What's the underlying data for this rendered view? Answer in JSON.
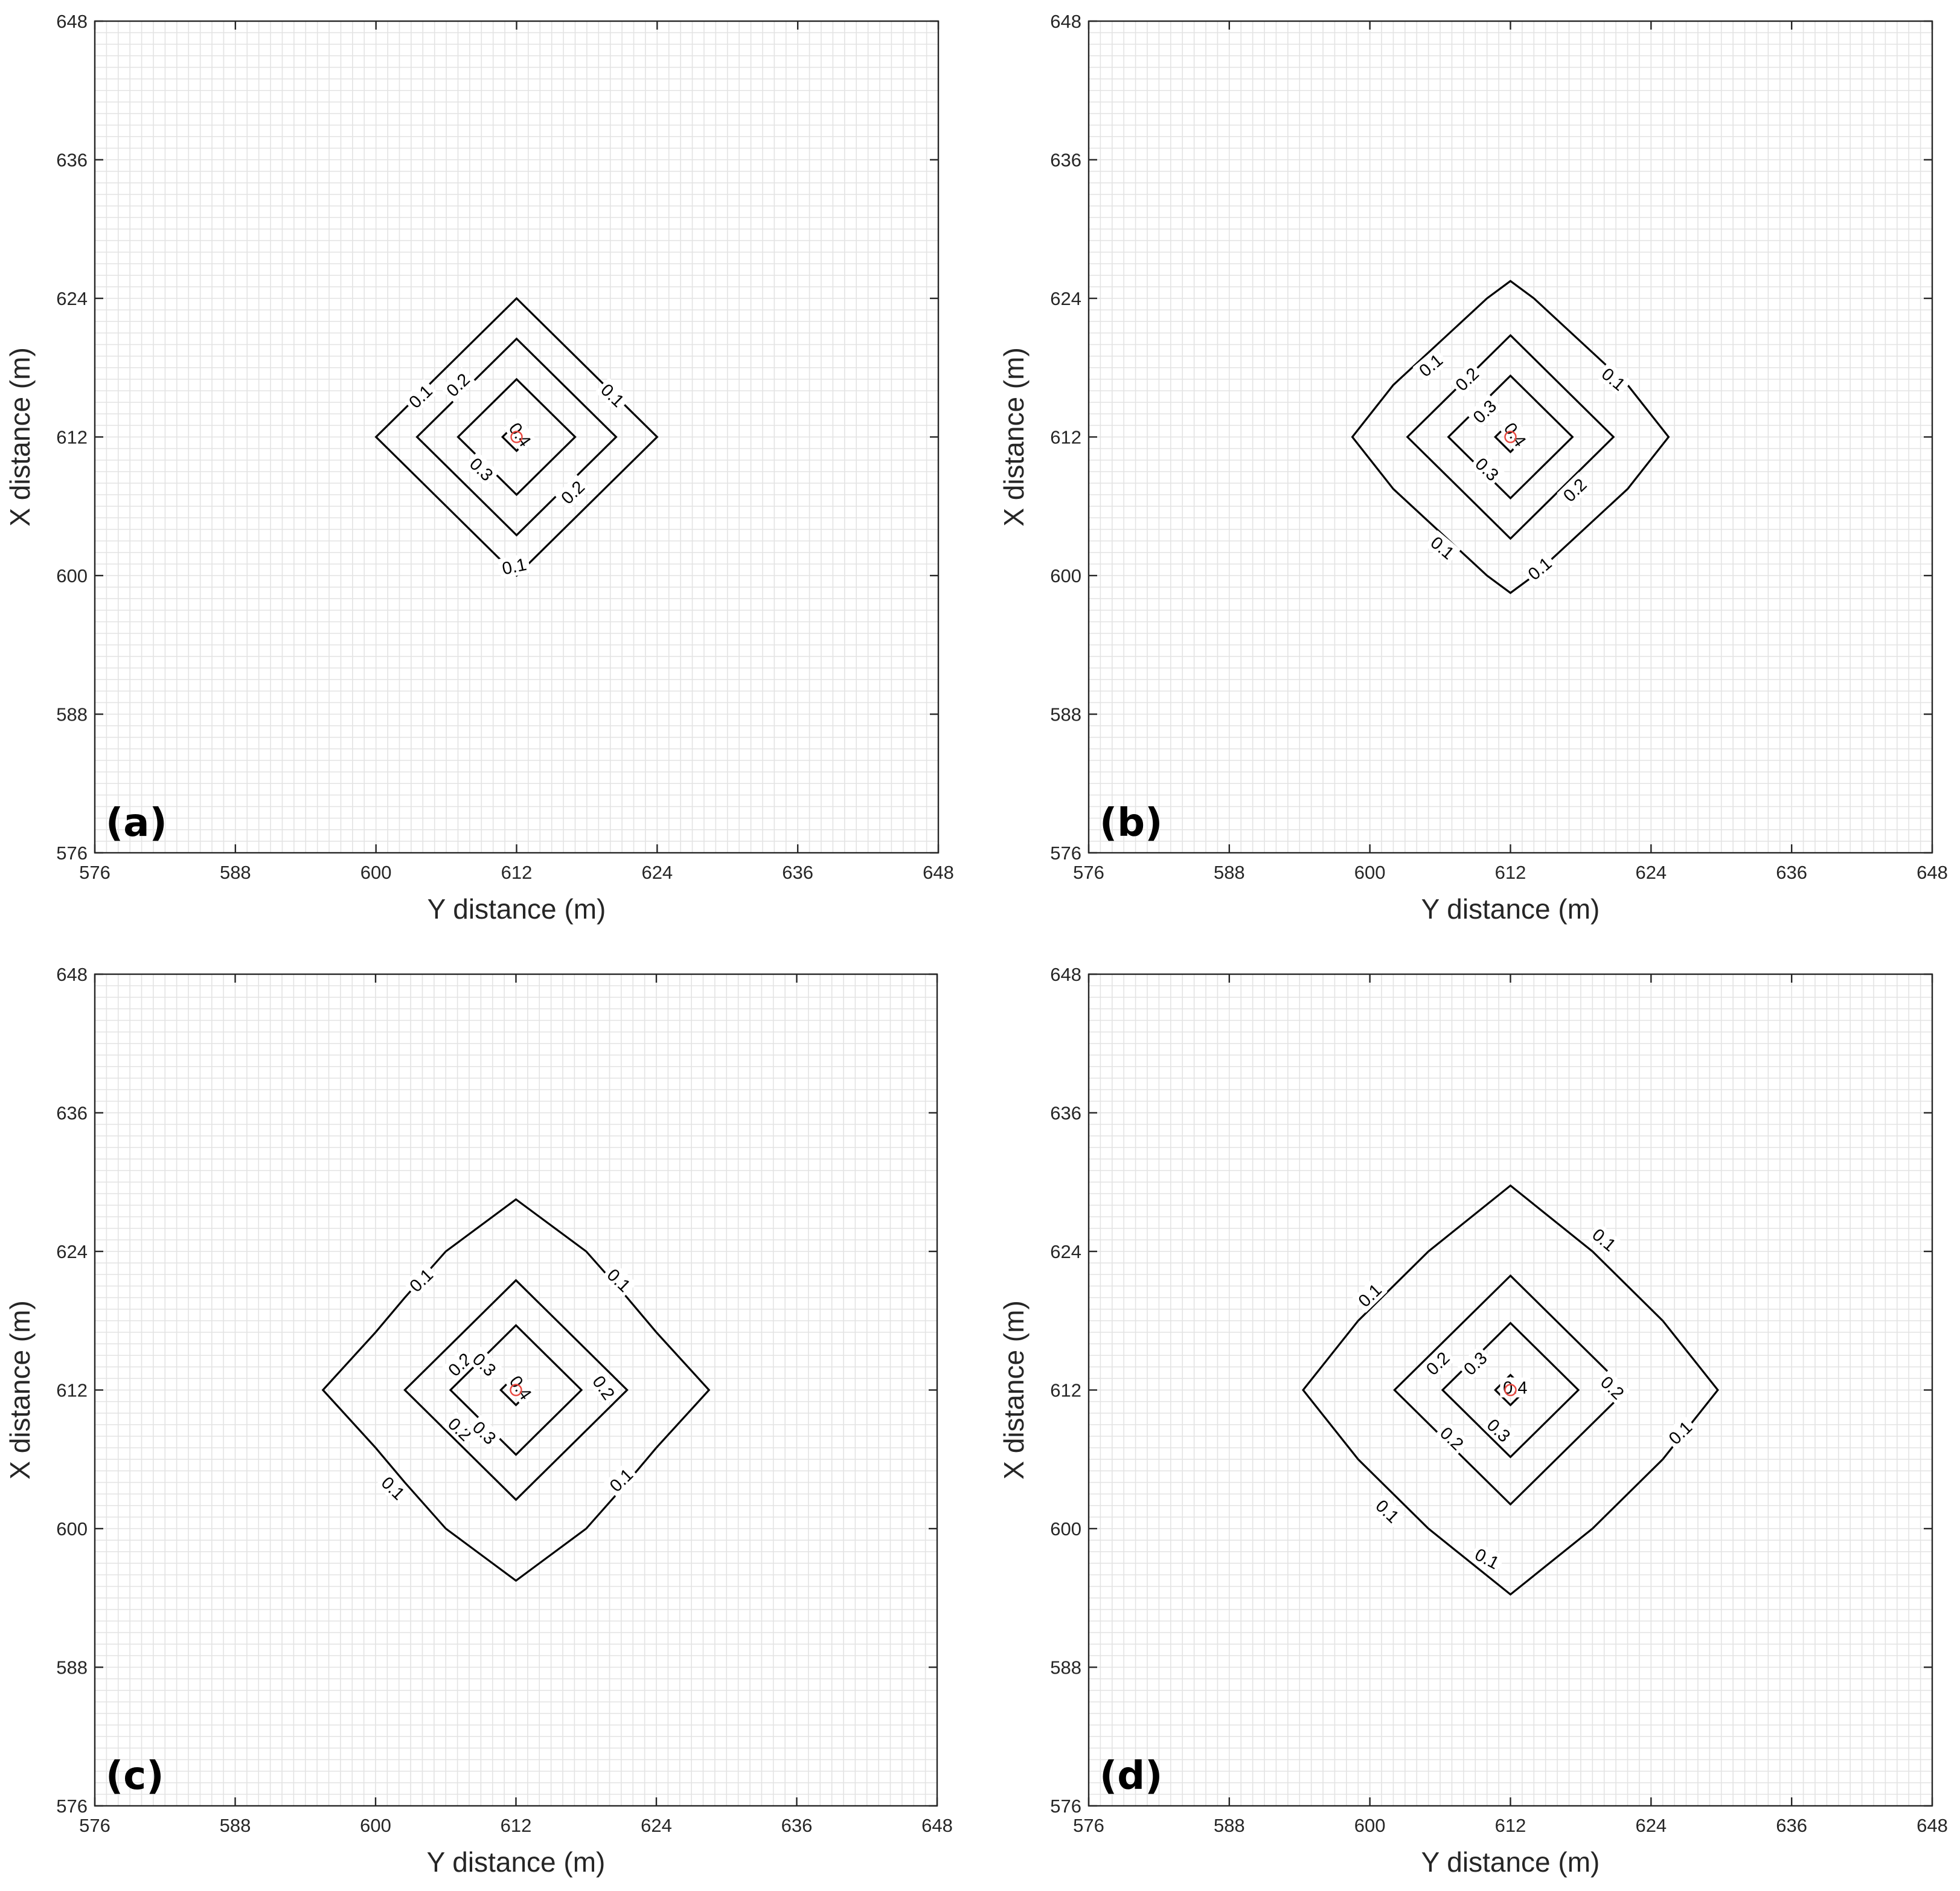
{
  "figure": {
    "panels": [
      "a",
      "b",
      "c",
      "d"
    ]
  },
  "chart_data": [
    {
      "type": "contour",
      "panel_label": "(a)",
      "xlabel": "Y distance (m)",
      "ylabel": "X distance (m)",
      "xlim": [
        576,
        648
      ],
      "ylim": [
        576,
        648
      ],
      "xticks": [
        576,
        588,
        600,
        612,
        624,
        636,
        648
      ],
      "yticks": [
        576,
        588,
        600,
        612,
        624,
        636,
        648
      ],
      "minor_grid_step": 1,
      "grid": true,
      "source_point": {
        "x": 612,
        "y": 612,
        "color": "#e8473f"
      },
      "levels": [
        {
          "value": 0.1,
          "label": "0.1",
          "points": [
            [
              612,
              624
            ],
            [
              624,
              612
            ],
            [
              612,
              600
            ],
            [
              600,
              612
            ]
          ]
        },
        {
          "value": 0.2,
          "label": "0.2",
          "points": [
            [
              612,
              620.5
            ],
            [
              620.5,
              612
            ],
            [
              612,
              603.5
            ],
            [
              603.5,
              612
            ]
          ]
        },
        {
          "value": 0.3,
          "label": "0.3",
          "points": [
            [
              612,
              617
            ],
            [
              617,
              612
            ],
            [
              612,
              607
            ],
            [
              607,
              612
            ]
          ]
        },
        {
          "value": 0.4,
          "label": "0.4",
          "points": [
            [
              612,
              613.2
            ],
            [
              613.2,
              612
            ],
            [
              612,
              610.8
            ],
            [
              610.8,
              612
            ]
          ]
        }
      ],
      "contour_labels": [
        {
          "text": "0.1",
          "x": 603.8,
          "y": 615.5,
          "angle": -44
        },
        {
          "text": "0.1",
          "x": 620.2,
          "y": 615.6,
          "angle": 44
        },
        {
          "text": "0.1",
          "x": 611.8,
          "y": 600.8,
          "angle": -12
        },
        {
          "text": "0.2",
          "x": 607.0,
          "y": 616.5,
          "angle": -44
        },
        {
          "text": "0.2",
          "x": 616.8,
          "y": 607.2,
          "angle": -44
        },
        {
          "text": "0.3",
          "x": 609.0,
          "y": 609.2,
          "angle": 44
        },
        {
          "text": "0.4",
          "x": 612.3,
          "y": 612.2,
          "angle": 55
        }
      ]
    },
    {
      "type": "contour",
      "panel_label": "(b)",
      "xlabel": "Y distance (m)",
      "ylabel": "X distance (m)",
      "xlim": [
        576,
        648
      ],
      "ylim": [
        576,
        648
      ],
      "xticks": [
        576,
        588,
        600,
        612,
        624,
        636,
        648
      ],
      "yticks": [
        576,
        588,
        600,
        612,
        624,
        636,
        648
      ],
      "minor_grid_step": 1,
      "grid": true,
      "source_point": {
        "x": 612,
        "y": 612,
        "color": "#e8473f"
      },
      "levels": [
        {
          "value": 0.1,
          "label": "0.1",
          "points": [
            [
              612,
              625.5
            ],
            [
              614,
              624
            ],
            [
              622,
              616.5
            ],
            [
              625.5,
              612
            ],
            [
              622,
              607.5
            ],
            [
              614,
              600
            ],
            [
              612,
              598.5
            ],
            [
              610,
              600
            ],
            [
              602,
              607.5
            ],
            [
              598.5,
              612
            ],
            [
              602,
              616.5
            ],
            [
              610,
              624
            ]
          ]
        },
        {
          "value": 0.2,
          "label": "0.2",
          "points": [
            [
              612,
              620.8
            ],
            [
              620.8,
              612
            ],
            [
              612,
              603.2
            ],
            [
              603.2,
              612
            ]
          ]
        },
        {
          "value": 0.3,
          "label": "0.3",
          "points": [
            [
              612,
              617.3
            ],
            [
              617.3,
              612
            ],
            [
              612,
              606.7
            ],
            [
              607.3,
              611.4
            ],
            [
              606.7,
              612
            ]
          ]
        },
        {
          "value": 0.4,
          "label": "0.4",
          "points": [
            [
              612,
              613.3
            ],
            [
              613.3,
              612
            ],
            [
              612,
              610.7
            ],
            [
              610.7,
              612
            ]
          ]
        }
      ],
      "contour_labels": [
        {
          "text": "0.1",
          "x": 605.2,
          "y": 618.2,
          "angle": -40
        },
        {
          "text": "0.1",
          "x": 620.8,
          "y": 617.0,
          "angle": 40
        },
        {
          "text": "0.1",
          "x": 606.2,
          "y": 602.4,
          "angle": 40
        },
        {
          "text": "0.1",
          "x": 614.5,
          "y": 600.6,
          "angle": -40
        },
        {
          "text": "0.2",
          "x": 608.3,
          "y": 617.0,
          "angle": -44
        },
        {
          "text": "0.2",
          "x": 617.5,
          "y": 607.4,
          "angle": -44
        },
        {
          "text": "0.3",
          "x": 609.8,
          "y": 614.2,
          "angle": -44
        },
        {
          "text": "0.3",
          "x": 610.0,
          "y": 609.2,
          "angle": 44
        },
        {
          "text": "0.4",
          "x": 612.4,
          "y": 612.2,
          "angle": 55
        }
      ]
    },
    {
      "type": "contour",
      "panel_label": "(c)",
      "xlabel": "Y distance (m)",
      "ylabel": "X distance (m)",
      "xlim": [
        576,
        648
      ],
      "ylim": [
        576,
        648
      ],
      "xticks": [
        576,
        588,
        600,
        612,
        624,
        636,
        648
      ],
      "yticks": [
        576,
        588,
        600,
        612,
        624,
        636,
        648
      ],
      "minor_grid_step": 1,
      "grid": true,
      "source_point": {
        "x": 612,
        "y": 612,
        "color": "#e8473f"
      },
      "levels": [
        {
          "value": 0.1,
          "label": "0.1",
          "points": [
            [
              612,
              628.5
            ],
            [
              618,
              624
            ],
            [
              621.5,
              620
            ],
            [
              624,
              617
            ],
            [
              628.5,
              612
            ],
            [
              624,
              607
            ],
            [
              621.5,
              604
            ],
            [
              618,
              600
            ],
            [
              612,
              595.5
            ],
            [
              606,
              600
            ],
            [
              602.5,
              604
            ],
            [
              600,
              607
            ],
            [
              595.5,
              612
            ],
            [
              600,
              617
            ],
            [
              602.5,
              620
            ],
            [
              606,
              624
            ]
          ]
        },
        {
          "value": 0.2,
          "label": "0.2",
          "points": [
            [
              612,
              621.5
            ],
            [
              621.5,
              612
            ],
            [
              612,
              602.5
            ],
            [
              602.5,
              612
            ]
          ]
        },
        {
          "value": 0.3,
          "label": "0.3",
          "points": [
            [
              612,
              617.6
            ],
            [
              617.6,
              612
            ],
            [
              612,
              606.4
            ],
            [
              606.4,
              612
            ]
          ]
        },
        {
          "value": 0.4,
          "label": "0.4",
          "points": [
            [
              612,
              613.3
            ],
            [
              613.3,
              612
            ],
            [
              612,
              610.7
            ],
            [
              610.7,
              612
            ]
          ]
        }
      ],
      "contour_labels": [
        {
          "text": "0.1",
          "x": 603.9,
          "y": 621.5,
          "angle": -44
        },
        {
          "text": "0.1",
          "x": 620.8,
          "y": 621.5,
          "angle": 44
        },
        {
          "text": "0.1",
          "x": 601.5,
          "y": 603.5,
          "angle": 44
        },
        {
          "text": "0.1",
          "x": 621.0,
          "y": 604.2,
          "angle": -44
        },
        {
          "text": "0.2",
          "x": 607.2,
          "y": 614.2,
          "angle": -44
        },
        {
          "text": "0.2",
          "x": 619.5,
          "y": 612.2,
          "angle": 55
        },
        {
          "text": "0.2",
          "x": 607.2,
          "y": 608.6,
          "angle": 44
        },
        {
          "text": "0.3",
          "x": 609.3,
          "y": 614.2,
          "angle": 44
        },
        {
          "text": "0.3",
          "x": 609.3,
          "y": 608.3,
          "angle": 44
        },
        {
          "text": "0.4",
          "x": 612.4,
          "y": 612.2,
          "angle": 55
        }
      ]
    },
    {
      "type": "contour",
      "panel_label": "(d)",
      "xlabel": "Y distance (m)",
      "ylabel": "X distance (m)",
      "xlim": [
        576,
        648
      ],
      "ylim": [
        576,
        648
      ],
      "xticks": [
        576,
        588,
        600,
        612,
        624,
        636,
        648
      ],
      "yticks": [
        576,
        588,
        600,
        612,
        624,
        636,
        648
      ],
      "minor_grid_step": 1,
      "grid": true,
      "source_point": {
        "x": 612,
        "y": 612,
        "color": "#e8473f"
      },
      "levels": [
        {
          "value": 0.1,
          "label": "0.1",
          "points": [
            [
              612,
              629.7
            ],
            [
              619,
              624
            ],
            [
              625,
              618
            ],
            [
              629.7,
              612
            ],
            [
              625,
              606
            ],
            [
              619,
              600
            ],
            [
              612,
              594.3
            ],
            [
              605,
              600
            ],
            [
              599,
              606
            ],
            [
              594.3,
              612
            ],
            [
              599,
              618
            ],
            [
              605,
              624
            ]
          ]
        },
        {
          "value": 0.2,
          "label": "0.2",
          "points": [
            [
              612,
              621.9
            ],
            [
              621.9,
              612
            ],
            [
              612,
              602.1
            ],
            [
              602.1,
              612
            ]
          ]
        },
        {
          "value": 0.3,
          "label": "0.3",
          "points": [
            [
              612,
              617.8
            ],
            [
              617.8,
              612
            ],
            [
              612,
              606.2
            ],
            [
              606.2,
              612
            ]
          ]
        },
        {
          "value": 0.4,
          "label": "0.4",
          "points": [
            [
              612,
              613.3
            ],
            [
              613.3,
              612
            ],
            [
              612,
              610.7
            ],
            [
              610.7,
              612
            ]
          ]
        }
      ],
      "contour_labels": [
        {
          "text": "0.1",
          "x": 620.0,
          "y": 625.0,
          "angle": 40
        },
        {
          "text": "0.1",
          "x": 600.0,
          "y": 620.2,
          "angle": -44
        },
        {
          "text": "0.1",
          "x": 626.5,
          "y": 608.3,
          "angle": -44
        },
        {
          "text": "0.1",
          "x": 601.5,
          "y": 601.5,
          "angle": 44
        },
        {
          "text": "0.1",
          "x": 610.0,
          "y": 597.4,
          "angle": 28
        },
        {
          "text": "0.2",
          "x": 605.8,
          "y": 614.3,
          "angle": -44
        },
        {
          "text": "0.2",
          "x": 620.7,
          "y": 612.2,
          "angle": 44
        },
        {
          "text": "0.2",
          "x": 607.0,
          "y": 607.8,
          "angle": 44
        },
        {
          "text": "0.3",
          "x": 609.0,
          "y": 614.3,
          "angle": -44
        },
        {
          "text": "0.3",
          "x": 611.0,
          "y": 608.5,
          "angle": 44
        },
        {
          "text": "0.4",
          "x": 612.4,
          "y": 612.2,
          "angle": 0
        }
      ]
    }
  ]
}
